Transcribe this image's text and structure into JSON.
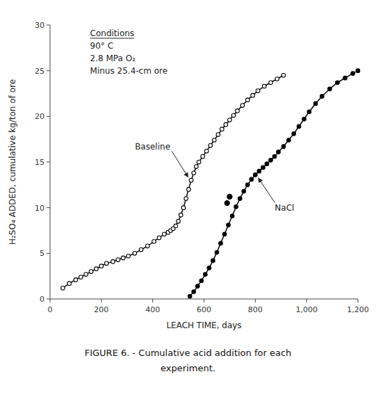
{
  "chart_data": {
    "type": "line",
    "xlabel": "LEACH TIME, days",
    "ylabel": "H₂SO₄ ADDED, cumulative kg/ton of ore",
    "xlim": [
      0,
      1200
    ],
    "ylim": [
      0,
      30
    ],
    "xticks": [
      0,
      200,
      400,
      600,
      800,
      {
        "value": 1000,
        "label": "1,000"
      },
      {
        "value": 1200,
        "label": "1,200"
      }
    ],
    "yticks": [
      0,
      5,
      10,
      15,
      20,
      25,
      30
    ],
    "grid": false,
    "annotations": [
      "Conditions",
      "90° C",
      "2.8 MPa O₂",
      "Minus 25.4-cm ore"
    ],
    "caption": [
      "FIGURE 6. - Cumulative acid addition for each",
      "experiment."
    ],
    "series": [
      {
        "name": "Baseline",
        "type": "line",
        "marker": "open-circle",
        "color": "black",
        "x": [
          50,
          75,
          100,
          120,
          140,
          160,
          180,
          200,
          220,
          245,
          265,
          285,
          305,
          330,
          355,
          380,
          405,
          425,
          445,
          460,
          470,
          480,
          490,
          500,
          510,
          520,
          530,
          540,
          550,
          560,
          570,
          580,
          595,
          610,
          625,
          640,
          655,
          670,
          685,
          700,
          715,
          730,
          750,
          770,
          790,
          810,
          835,
          860,
          885,
          910
        ],
        "values": [
          1.2,
          1.7,
          2.1,
          2.4,
          2.7,
          3.0,
          3.3,
          3.6,
          3.9,
          4.1,
          4.3,
          4.5,
          4.7,
          5.0,
          5.4,
          5.8,
          6.3,
          6.7,
          7.1,
          7.3,
          7.5,
          7.7,
          8.0,
          8.5,
          9.2,
          10.0,
          11.0,
          12.0,
          13.0,
          13.8,
          14.5,
          15.0,
          15.6,
          16.2,
          16.8,
          17.4,
          18.0,
          18.6,
          19.1,
          19.6,
          20.1,
          20.6,
          21.2,
          21.8,
          22.3,
          22.8,
          23.3,
          23.7,
          24.1,
          24.5
        ]
      },
      {
        "name": "NaCl",
        "type": "line",
        "marker": "circle",
        "color": "black",
        "x": [
          545,
          560,
          575,
          590,
          605,
          620,
          635,
          650,
          665,
          680,
          695,
          710,
          725,
          740,
          755,
          770,
          785,
          800,
          815,
          830,
          845,
          860,
          875,
          890,
          910,
          930,
          950,
          970,
          990,
          1010,
          1035,
          1060,
          1090,
          1120,
          1150,
          1180,
          1200
        ],
        "values": [
          0.3,
          0.8,
          1.4,
          2.0,
          2.7,
          3.4,
          4.2,
          5.1,
          6.1,
          7.1,
          8.1,
          9.1,
          10.1,
          11.0,
          11.8,
          12.5,
          13.1,
          13.6,
          14.0,
          14.4,
          14.8,
          15.2,
          15.6,
          16.1,
          16.7,
          17.4,
          18.1,
          18.9,
          19.7,
          20.5,
          21.4,
          22.2,
          23.0,
          23.7,
          24.2,
          24.7,
          25.0
        ]
      },
      {
        "type": "scatter",
        "marker": "circle",
        "color": "black",
        "x": [
          690,
          700
        ],
        "values": [
          10.5,
          11.2
        ]
      }
    ]
  }
}
